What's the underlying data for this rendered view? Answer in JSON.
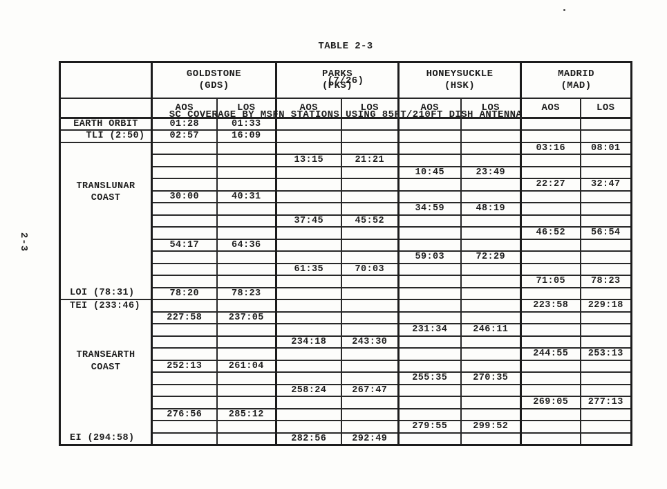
{
  "page": {
    "vertical_page_number": "2-3"
  },
  "title": {
    "line1": "TABLE 2-3",
    "line2": "(7/26)",
    "line3": "SC COVERAGE BY MSFN STATIONS USING 85FT/210FT DISH ANTENNA"
  },
  "table": {
    "stations": [
      {
        "name": "GOLDSTONE",
        "abbr": "(GDS)"
      },
      {
        "name": "PARKS",
        "abbr": "(PKS)"
      },
      {
        "name": "HONEYSUCKLE",
        "abbr": "(HSK)"
      },
      {
        "name": "MADRID",
        "abbr": "(MAD)"
      }
    ],
    "subheaders": [
      "AOS",
      "LOS"
    ],
    "phases": {
      "translunar": {
        "coast_lines": [
          "TRANSLUNAR",
          "COAST"
        ],
        "event_bottom": "LOI (78:31)"
      },
      "transearth": {
        "event_top": "TEI (233:46)",
        "coast_lines": [
          "TRANSEARTH",
          "COAST"
        ],
        "event_bottom": "EI (294:58)"
      }
    },
    "columns": [
      "gds-aos",
      "gds-los",
      "pks-aos",
      "pks-los",
      "hsk-aos",
      "hsk-los",
      "mad-aos",
      "mad-los"
    ],
    "rows": [
      {
        "label": "EARTH ORBIT",
        "cells": [
          "01:28",
          "01:33",
          "",
          "",
          "",
          "",
          "",
          ""
        ]
      },
      {
        "label": "TLI (2:50)",
        "cells": [
          "02:57",
          "16:09",
          "",
          "",
          "",
          "",
          "",
          ""
        ]
      },
      {
        "phase_start": "translunar",
        "cells": [
          "",
          "",
          "",
          "",
          "",
          "",
          "03:16",
          "08:01"
        ]
      },
      {
        "cells": [
          "",
          "",
          "13:15",
          "21:21",
          "",
          "",
          "",
          ""
        ]
      },
      {
        "cells": [
          "",
          "",
          "",
          "",
          "10:45",
          "23:49",
          "",
          ""
        ]
      },
      {
        "cells": [
          "",
          "",
          "",
          "",
          "",
          "",
          "22:27",
          "32:47"
        ]
      },
      {
        "cells": [
          "30:00",
          "40:31",
          "",
          "",
          "",
          "",
          "",
          ""
        ]
      },
      {
        "cells": [
          "",
          "",
          "",
          "",
          "34:59",
          "48:19",
          "",
          ""
        ]
      },
      {
        "cells": [
          "",
          "",
          "37:45",
          "45:52",
          "",
          "",
          "",
          ""
        ]
      },
      {
        "cells": [
          "",
          "",
          "",
          "",
          "",
          "",
          "46:52",
          "56:54"
        ]
      },
      {
        "cells": [
          "54:17",
          "64:36",
          "",
          "",
          "",
          "",
          "",
          ""
        ]
      },
      {
        "cells": [
          "",
          "",
          "",
          "",
          "59:03",
          "72:29",
          "",
          ""
        ]
      },
      {
        "cells": [
          "",
          "",
          "61:35",
          "70:03",
          "",
          "",
          "",
          ""
        ]
      },
      {
        "cells": [
          "",
          "",
          "",
          "",
          "",
          "",
          "71:05",
          "78:23"
        ]
      },
      {
        "cells": [
          "78:20",
          "78:23",
          "",
          "",
          "",
          "",
          "",
          ""
        ]
      },
      {
        "phase_start": "transearth",
        "cells": [
          "",
          "",
          "",
          "",
          "",
          "",
          "223:58",
          "229:18"
        ]
      },
      {
        "cells": [
          "227:58",
          "237:05",
          "",
          "",
          "",
          "",
          "",
          ""
        ]
      },
      {
        "cells": [
          "",
          "",
          "",
          "",
          "231:34",
          "246:11",
          "",
          ""
        ]
      },
      {
        "cells": [
          "",
          "",
          "234:18",
          "243:30",
          "",
          "",
          "",
          ""
        ]
      },
      {
        "cells": [
          "",
          "",
          "",
          "",
          "",
          "",
          "244:55",
          "253:13"
        ]
      },
      {
        "cells": [
          "252:13",
          "261:04",
          "",
          "",
          "",
          "",
          "",
          ""
        ]
      },
      {
        "cells": [
          "",
          "",
          "",
          "",
          "255:35",
          "270:35",
          "",
          ""
        ]
      },
      {
        "cells": [
          "",
          "",
          "258:24",
          "267:47",
          "",
          "",
          "",
          ""
        ]
      },
      {
        "cells": [
          "",
          "",
          "",
          "",
          "",
          "",
          "269:05",
          "277:13"
        ]
      },
      {
        "cells": [
          "276:56",
          "285:12",
          "",
          "",
          "",
          "",
          "",
          ""
        ]
      },
      {
        "cells": [
          "",
          "",
          "",
          "",
          "279:55",
          "299:52",
          "",
          ""
        ]
      },
      {
        "cells": [
          "",
          "",
          "282:56",
          "292:49",
          "",
          "",
          "",
          ""
        ]
      }
    ]
  }
}
